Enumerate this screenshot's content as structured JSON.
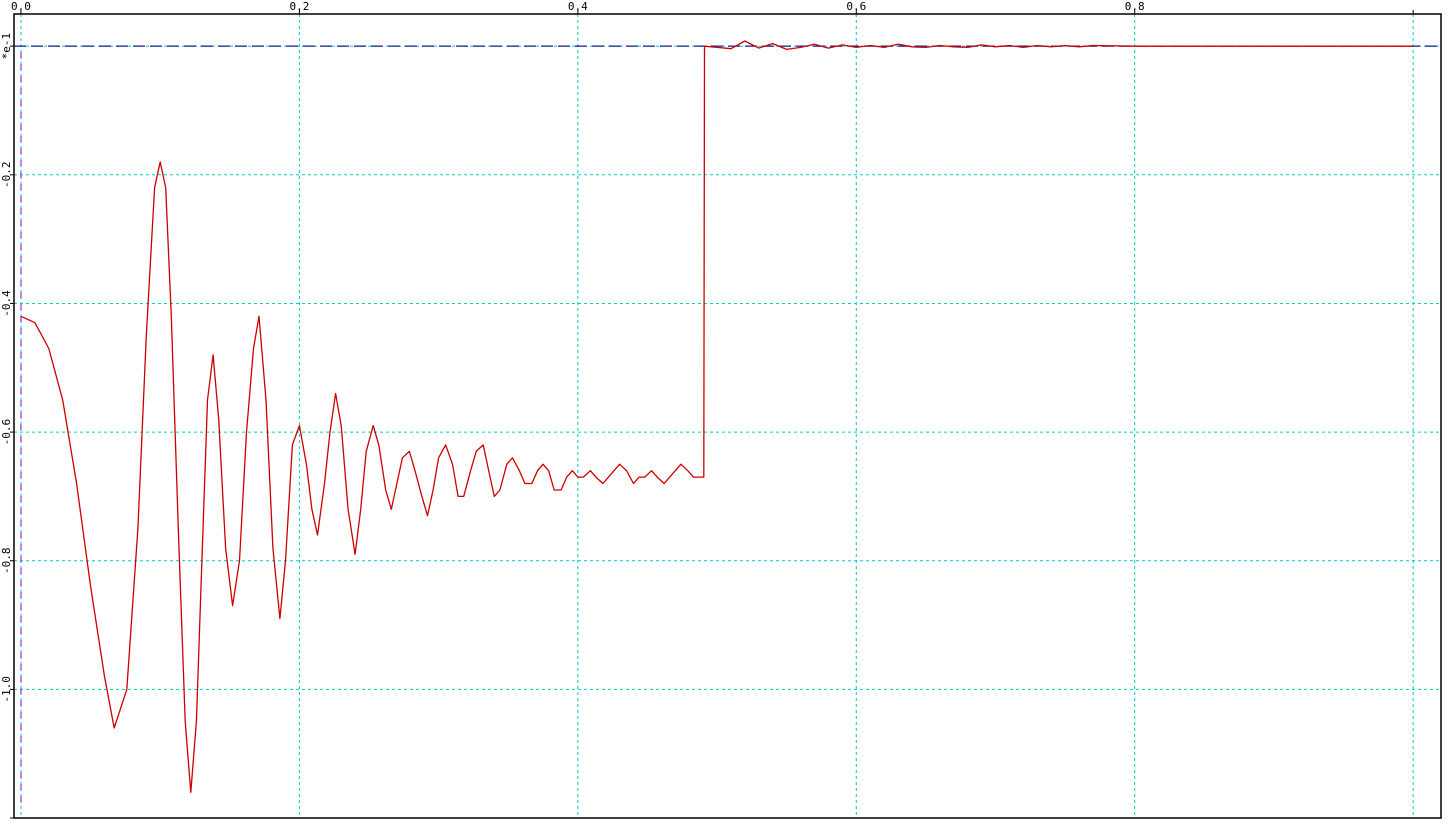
{
  "chart_data": {
    "type": "line",
    "title": "",
    "xlabel": "",
    "ylabel": "",
    "xlim": [
      -0.005,
      1.02
    ],
    "ylim": [
      -1.2,
      0.05
    ],
    "grid": true,
    "x_ticks": [
      {
        "value": 0.0,
        "label": "0.0"
      },
      {
        "value": 0.2,
        "label": "0.2"
      },
      {
        "value": 0.4,
        "label": "0.4"
      },
      {
        "value": 0.6,
        "label": "0.6"
      },
      {
        "value": 0.8,
        "label": "0.8"
      },
      {
        "value": 1.0,
        "label": ""
      }
    ],
    "y_ticks": [
      {
        "value": 0.0,
        "label": "*e-1"
      },
      {
        "value": -0.2,
        "label": "-0.2"
      },
      {
        "value": -0.4,
        "label": "-0.4"
      },
      {
        "value": -0.6,
        "label": "-0.6"
      },
      {
        "value": -0.8,
        "label": "-0.8"
      },
      {
        "value": -1.0,
        "label": "-1.0"
      },
      {
        "value": -1.2,
        "label": ""
      }
    ],
    "reference_line": {
      "y": 0.0,
      "color": "#1a1a8c",
      "style": "dashed"
    },
    "marker_line": {
      "x": 0.0,
      "color": "#9933cc",
      "style": "dashed"
    },
    "series": [
      {
        "color": "#cc0000",
        "x": [
          0.0,
          0.01,
          0.02,
          0.03,
          0.04,
          0.05,
          0.06,
          0.067,
          0.076,
          0.084,
          0.09,
          0.096,
          0.1,
          0.104,
          0.108,
          0.113,
          0.118,
          0.122,
          0.126,
          0.13,
          0.134,
          0.138,
          0.142,
          0.147,
          0.152,
          0.157,
          0.162,
          0.167,
          0.171,
          0.176,
          0.181,
          0.186,
          0.19,
          0.195,
          0.2,
          0.205,
          0.209,
          0.213,
          0.218,
          0.222,
          0.226,
          0.23,
          0.235,
          0.24,
          0.244,
          0.248,
          0.253,
          0.257,
          0.262,
          0.266,
          0.27,
          0.274,
          0.279,
          0.283,
          0.288,
          0.292,
          0.296,
          0.3,
          0.305,
          0.31,
          0.314,
          0.318,
          0.323,
          0.327,
          0.332,
          0.336,
          0.34,
          0.344,
          0.349,
          0.353,
          0.358,
          0.362,
          0.367,
          0.371,
          0.375,
          0.379,
          0.383,
          0.388,
          0.392,
          0.396,
          0.4,
          0.404,
          0.409,
          0.413,
          0.418,
          0.422,
          0.426,
          0.43,
          0.435,
          0.44,
          0.444,
          0.448,
          0.453,
          0.457,
          0.462,
          0.466,
          0.47,
          0.474,
          0.479,
          0.483,
          0.488,
          0.4905,
          0.491,
          0.5,
          0.51,
          0.52,
          0.53,
          0.54,
          0.55,
          0.56,
          0.57,
          0.58,
          0.59,
          0.6,
          0.61,
          0.62,
          0.63,
          0.64,
          0.65,
          0.66,
          0.67,
          0.68,
          0.69,
          0.7,
          0.71,
          0.72,
          0.73,
          0.74,
          0.75,
          0.76,
          0.77,
          0.8,
          0.9,
          1.0
        ],
        "y": [
          -0.42,
          -0.43,
          -0.47,
          -0.55,
          -0.68,
          -0.84,
          -0.98,
          -1.06,
          -1.0,
          -0.75,
          -0.45,
          -0.22,
          -0.18,
          -0.22,
          -0.42,
          -0.75,
          -1.05,
          -1.16,
          -1.05,
          -0.8,
          -0.55,
          -0.48,
          -0.58,
          -0.78,
          -0.87,
          -0.8,
          -0.6,
          -0.47,
          -0.42,
          -0.55,
          -0.78,
          -0.89,
          -0.8,
          -0.62,
          -0.59,
          -0.65,
          -0.72,
          -0.76,
          -0.68,
          -0.6,
          -0.54,
          -0.59,
          -0.72,
          -0.79,
          -0.72,
          -0.63,
          -0.59,
          -0.62,
          -0.69,
          -0.72,
          -0.68,
          -0.64,
          -0.63,
          -0.66,
          -0.7,
          -0.73,
          -0.69,
          -0.64,
          -0.62,
          -0.65,
          -0.7,
          -0.7,
          -0.66,
          -0.63,
          -0.62,
          -0.66,
          -0.7,
          -0.69,
          -0.65,
          -0.64,
          -0.66,
          -0.68,
          -0.68,
          -0.66,
          -0.65,
          -0.66,
          -0.69,
          -0.69,
          -0.67,
          -0.66,
          -0.67,
          -0.67,
          -0.66,
          -0.67,
          -0.68,
          -0.67,
          -0.66,
          -0.65,
          -0.66,
          -0.68,
          -0.67,
          -0.67,
          -0.66,
          -0.67,
          -0.68,
          -0.67,
          -0.66,
          -0.65,
          -0.66,
          -0.67,
          -0.67,
          -0.67,
          -0.0,
          -0.002,
          -0.004,
          0.008,
          -0.003,
          0.004,
          -0.005,
          -0.002,
          0.003,
          -0.003,
          0.002,
          -0.002,
          0.001,
          -0.002,
          0.003,
          -0.001,
          -0.002,
          0.001,
          -0.001,
          -0.002,
          0.002,
          -0.001,
          0.001,
          -0.002,
          0.001,
          -0.001,
          0.001,
          -0.001,
          0.001,
          0.0,
          0.0,
          0.0
        ]
      }
    ]
  }
}
